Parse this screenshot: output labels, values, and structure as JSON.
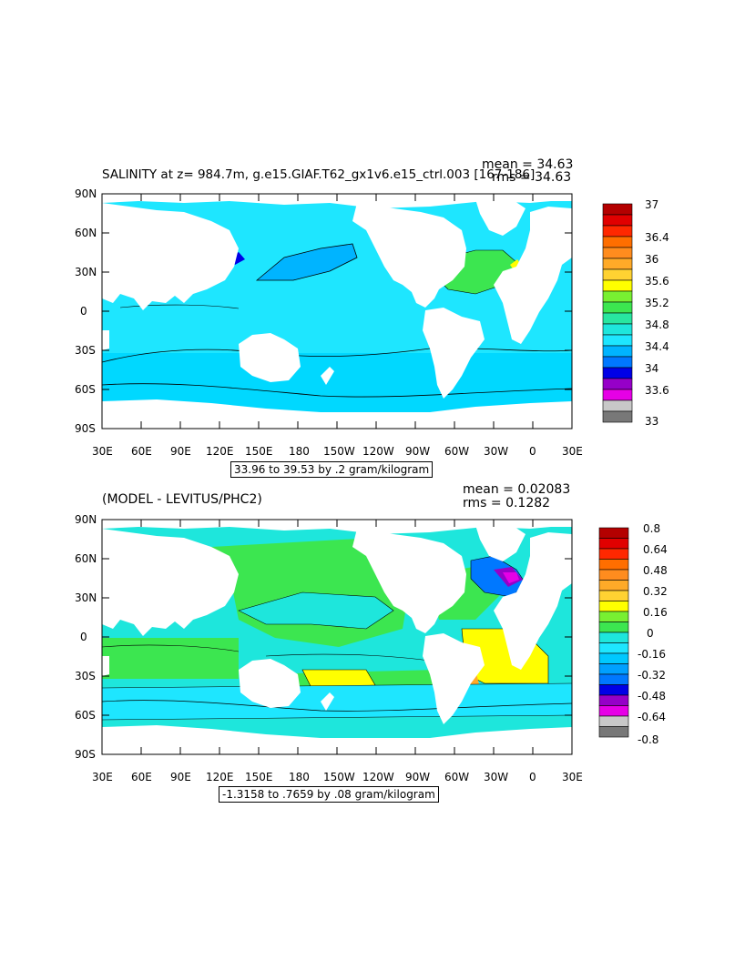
{
  "panel1": {
    "title": "SALINITY at z= 984.7m, g.e15.GIAF.T62_gx1v6.e15_ctrl.003 [167-186]",
    "mean_label": "mean = 34.63",
    "rms_label": "rms = 34.63",
    "range_label": "33.96 to 39.53 by .2 gram/kilogram",
    "colorbar_labels": [
      "37",
      "36.4",
      "36",
      "35.6",
      "35.2",
      "34.8",
      "34.4",
      "34",
      "33.6",
      "33"
    ]
  },
  "panel2": {
    "title": "(MODEL - LEVITUS/PHC2)",
    "mean_label": "mean = 0.02083",
    "rms_label": "rms = 0.1282",
    "range_label": "-1.3158 to .7659 by .08 gram/kilogram",
    "colorbar_labels": [
      "0.8",
      "0.64",
      "0.48",
      "0.32",
      "0.16",
      "0",
      "-0.16",
      "-0.32",
      "-0.48",
      "-0.64",
      "-0.8"
    ]
  },
  "axes": {
    "lat_labels": [
      "90N",
      "60N",
      "30N",
      "0",
      "30S",
      "60S",
      "90S"
    ],
    "lon_labels": [
      "30E",
      "60E",
      "90E",
      "120E",
      "150E",
      "180",
      "150W",
      "120W",
      "90W",
      "60W",
      "30W",
      "0",
      "30E"
    ]
  },
  "colors": {
    "land": "#ffffff",
    "ocean_deep": "#1ee6ff",
    "ocean_mid": "#00c8ff",
    "ocean_blue": "#00a0ff",
    "green": "#3ce650",
    "yellow": "#ffff00",
    "orange": "#ff9a1e",
    "red": "#d20000",
    "purple": "#9600c8",
    "magenta": "#e600e6",
    "dark_blue": "#0000e6",
    "gray": "#c8c8c8",
    "dark_gray": "#787878"
  }
}
